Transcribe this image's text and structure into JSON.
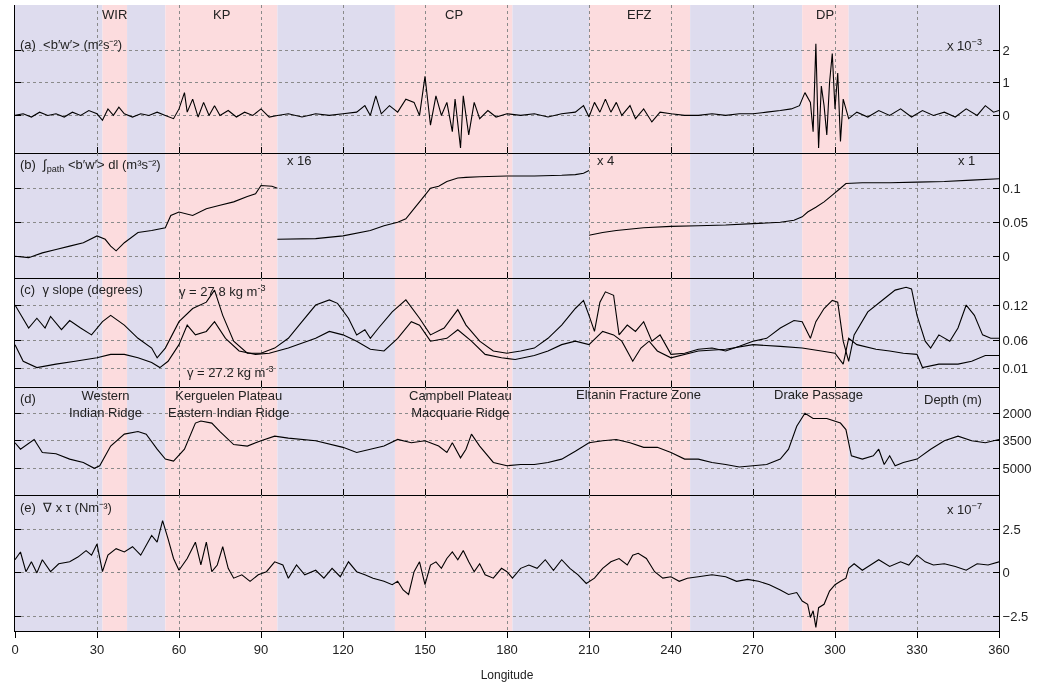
{
  "chart_data": [
    {
      "type": "line",
      "title": "(a)  <b′w′> (m²s⁻²)",
      "xlim": [
        0,
        360
      ],
      "xticks": [
        0,
        30,
        60,
        90,
        120,
        150,
        180,
        210,
        240,
        270,
        300,
        330,
        360
      ],
      "ylim": [
        -1.15,
        3.39
      ],
      "yticks": [
        0,
        1,
        2
      ],
      "grid": true,
      "tick_labels": "y",
      "annotations": [
        "x 10$^{−3}$"
      ],
      "bands": [
        {
          "axis": "x",
          "from": 0,
          "to": 32,
          "color": "#dedcee"
        },
        {
          "axis": "x",
          "from": 32,
          "to": 41,
          "color": "#fcdcde",
          "label": "WIR"
        },
        {
          "axis": "x",
          "from": 41,
          "to": 55,
          "color": "#dedcee"
        },
        {
          "axis": "x",
          "from": 55,
          "to": 96,
          "color": "#fcdcde",
          "label": "KP"
        },
        {
          "axis": "x",
          "from": 96,
          "to": 139,
          "color": "#dedcee"
        },
        {
          "axis": "x",
          "from": 139,
          "to": 182,
          "color": "#fcdcde",
          "label": "CP"
        },
        {
          "axis": "x",
          "from": 182,
          "to": 210,
          "color": "#dedcee"
        },
        {
          "axis": "x",
          "from": 210,
          "to": 247,
          "color": "#fcdcde",
          "label": "EFZ"
        },
        {
          "axis": "x",
          "from": 247,
          "to": 288,
          "color": "#dedcee"
        },
        {
          "axis": "x",
          "from": 288,
          "to": 305,
          "color": "#fcdcde",
          "label": "DP"
        },
        {
          "axis": "x",
          "from": 305,
          "to": 360,
          "color": "#dedcee"
        }
      ],
      "series": [
        {
          "color": "#000000",
          "x": [
            0,
            3,
            6,
            9,
            12,
            15,
            18,
            21,
            24,
            27,
            30,
            32,
            34,
            36,
            38,
            40,
            43,
            46,
            49,
            52,
            55,
            58,
            60,
            62,
            63,
            65,
            67,
            69,
            71,
            73,
            75,
            78,
            81,
            84,
            87,
            90,
            93,
            96,
            100,
            105,
            110,
            115,
            120,
            125,
            128,
            130,
            132,
            134,
            137,
            140,
            143,
            146,
            148,
            150,
            152,
            154,
            156,
            158,
            160,
            161,
            163,
            164,
            166,
            168,
            170,
            173,
            176,
            180,
            185,
            190,
            195,
            200,
            205,
            208,
            210,
            212,
            214,
            216,
            218,
            220,
            222,
            225,
            227,
            230,
            233,
            236,
            240,
            245,
            250,
            255,
            260,
            265,
            270,
            275,
            280,
            284,
            287,
            289,
            291,
            292,
            293,
            294,
            295,
            296,
            297,
            298,
            299,
            300,
            301,
            302,
            303,
            305,
            308,
            312,
            316,
            320,
            324,
            328,
            332,
            336,
            340,
            344,
            348,
            352,
            355,
            358,
            360
          ],
          "values": [
            0,
            0.05,
            -0.05,
            0.1,
            0,
            0.05,
            -0.05,
            0.1,
            0,
            0.15,
            0.05,
            -0.15,
            0.2,
            0,
            0.25,
            0.05,
            -0.05,
            0.05,
            0,
            0.1,
            0,
            -0.1,
            0.2,
            0.7,
            0.1,
            0.5,
            -0.05,
            0.4,
            0,
            0.3,
            0,
            0.15,
            -0.05,
            0.1,
            0,
            0.2,
            -0.05,
            0,
            0.05,
            -0.05,
            0.05,
            0,
            0.05,
            0.1,
            0.3,
            0,
            0.6,
            0.05,
            0.3,
            0.1,
            0.5,
            0.4,
            0,
            1.2,
            -0.3,
            0.6,
            0,
            0.4,
            -0.5,
            0.5,
            -1.0,
            0.6,
            -0.6,
            0.4,
            -0.1,
            0.15,
            -0.05,
            0.05,
            0,
            0.05,
            -0.05,
            0.05,
            0.1,
            0.3,
            -0.05,
            0.4,
            0.1,
            0.5,
            0.1,
            0.4,
            0,
            0.3,
            -0.1,
            0.2,
            -0.2,
            0.1,
            0.05,
            0,
            0,
            0.05,
            0,
            0.05,
            0.05,
            0.1,
            0.15,
            0.2,
            0.3,
            0.7,
            0.4,
            -0.5,
            2.2,
            -1.0,
            0.9,
            0.3,
            -0.6,
            1.0,
            1.9,
            0.2,
            1.3,
            -0.8,
            0.5,
            -0.1,
            0.1,
            -0.05,
            0.15,
            0,
            0.2,
            -0.05,
            0.15,
            0,
            0.1,
            -0.05,
            0.2,
            0,
            0.3,
            0.1,
            0.15
          ]
        }
      ]
    },
    {
      "type": "line",
      "title": "(b)  ∫$_{path}$ <b′w′> dl (m³s⁻²)",
      "xlim": [
        0,
        360
      ],
      "xticks": [
        0,
        30,
        60,
        90,
        120,
        150,
        180,
        210,
        240,
        270,
        300,
        330,
        360
      ],
      "ylim": [
        -0.032,
        0.152
      ],
      "yticks": [
        0,
        0.05,
        0.1
      ],
      "grid": true,
      "tick_labels": "y",
      "annotations": [
        "x 16",
        "x 4",
        "x 1"
      ],
      "bands": [
        {
          "axis": "x",
          "from": 0,
          "to": 32,
          "color": "#dedcee"
        },
        {
          "axis": "x",
          "from": 32,
          "to": 41,
          "color": "#fcdcde"
        },
        {
          "axis": "x",
          "from": 41,
          "to": 55,
          "color": "#dedcee"
        },
        {
          "axis": "x",
          "from": 55,
          "to": 96,
          "color": "#fcdcde"
        },
        {
          "axis": "x",
          "from": 96,
          "to": 139,
          "color": "#dedcee"
        },
        {
          "axis": "x",
          "from": 139,
          "to": 182,
          "color": "#fcdcde"
        },
        {
          "axis": "x",
          "from": 182,
          "to": 210,
          "color": "#dedcee"
        },
        {
          "axis": "x",
          "from": 210,
          "to": 247,
          "color": "#fcdcde"
        },
        {
          "axis": "x",
          "from": 247,
          "to": 288,
          "color": "#dedcee"
        },
        {
          "axis": "x",
          "from": 288,
          "to": 305,
          "color": "#fcdcde"
        },
        {
          "axis": "x",
          "from": 305,
          "to": 360,
          "color": "#dedcee"
        }
      ],
      "series": [
        {
          "color": "#000000",
          "x": [
            0,
            5,
            10,
            15,
            20,
            25,
            30,
            33,
            35,
            37,
            40,
            45,
            50,
            55,
            57,
            60,
            65,
            70,
            75,
            80,
            85,
            88,
            90,
            94,
            96
          ],
          "values": [
            0,
            -0.002,
            0.005,
            0.01,
            0.015,
            0.02,
            0.03,
            0.025,
            0.015,
            0.008,
            0.02,
            0.035,
            0.038,
            0.042,
            0.06,
            0.065,
            0.06,
            0.07,
            0.075,
            0.08,
            0.088,
            0.092,
            0.104,
            0.103,
            0.1
          ]
        },
        {
          "color": "#000000",
          "x": [
            96,
            110,
            120,
            130,
            135,
            140,
            143,
            146,
            150,
            152,
            155,
            158,
            162,
            165,
            170,
            180,
            190,
            200,
            205,
            208,
            210
          ],
          "values": [
            0.025,
            0.026,
            0.03,
            0.038,
            0.045,
            0.05,
            0.055,
            0.07,
            0.09,
            0.1,
            0.103,
            0.11,
            0.115,
            0.116,
            0.117,
            0.118,
            0.118,
            0.119,
            0.12,
            0.122,
            0.126
          ]
        },
        {
          "color": "#000000",
          "x": [
            210,
            215,
            220,
            230,
            240,
            250,
            260,
            270,
            280,
            285,
            288,
            290,
            293,
            296,
            299,
            302,
            304,
            310,
            320,
            330,
            340,
            350,
            360
          ],
          "values": [
            0.031,
            0.035,
            0.038,
            0.042,
            0.044,
            0.045,
            0.046,
            0.048,
            0.05,
            0.053,
            0.058,
            0.065,
            0.072,
            0.08,
            0.09,
            0.1,
            0.107,
            0.108,
            0.108,
            0.109,
            0.11,
            0.112,
            0.114
          ]
        }
      ]
    },
    {
      "type": "line",
      "title": "(c)  γ slope (degrees)",
      "xlim": [
        0,
        360
      ],
      "xticks": [
        0,
        30,
        60,
        90,
        120,
        150,
        180,
        210,
        240,
        270,
        300,
        330,
        360
      ],
      "ylim": [
        -0.021,
        0.168
      ],
      "yticks": [
        0.01,
        0.06,
        0.12
      ],
      "grid": true,
      "tick_labels": "y",
      "annotations": [
        "γ = 27.8 kg m$^{-3}$",
        "γ = 27.2 kg m$^{-3}$"
      ],
      "bands": [
        {
          "axis": "x",
          "from": 0,
          "to": 32,
          "color": "#dedcee"
        },
        {
          "axis": "x",
          "from": 32,
          "to": 41,
          "color": "#fcdcde"
        },
        {
          "axis": "x",
          "from": 41,
          "to": 55,
          "color": "#dedcee"
        },
        {
          "axis": "x",
          "from": 55,
          "to": 96,
          "color": "#fcdcde"
        },
        {
          "axis": "x",
          "from": 96,
          "to": 139,
          "color": "#dedcee"
        },
        {
          "axis": "x",
          "from": 139,
          "to": 182,
          "color": "#fcdcde"
        },
        {
          "axis": "x",
          "from": 182,
          "to": 210,
          "color": "#dedcee"
        },
        {
          "axis": "x",
          "from": 210,
          "to": 247,
          "color": "#fcdcde"
        },
        {
          "axis": "x",
          "from": 247,
          "to": 288,
          "color": "#dedcee"
        },
        {
          "axis": "x",
          "from": 288,
          "to": 305,
          "color": "#fcdcde"
        },
        {
          "axis": "x",
          "from": 305,
          "to": 360,
          "color": "#dedcee"
        }
      ],
      "series": [
        {
          "color": "#000000",
          "x": [
            0,
            5,
            8,
            11,
            13,
            17,
            20,
            24,
            28,
            32,
            35,
            40,
            45,
            50,
            52,
            55,
            60,
            65,
            70,
            73,
            76,
            80,
            85,
            90,
            95,
            100,
            105,
            110,
            115,
            118,
            122,
            125,
            128,
            130,
            133,
            138,
            143,
            148,
            152,
            157,
            162,
            165,
            170,
            175,
            180,
            185,
            190,
            195,
            200,
            205,
            208,
            210,
            212,
            214,
            216,
            219,
            221,
            224,
            227,
            230,
            233,
            236,
            240,
            245,
            250,
            255,
            260,
            265,
            270,
            275,
            280,
            285,
            288,
            291,
            293,
            296,
            299,
            301,
            303,
            305,
            307,
            312,
            318,
            322,
            326,
            328,
            330,
            333,
            335,
            338,
            342,
            345,
            348,
            351,
            354,
            357,
            360
          ],
          "values": [
            0.121,
            0.081,
            0.098,
            0.081,
            0.101,
            0.078,
            0.094,
            0.081,
            0.069,
            0.092,
            0.103,
            0.086,
            0.063,
            0.046,
            0.029,
            0.046,
            0.092,
            0.115,
            0.126,
            0.147,
            0.103,
            0.058,
            0.037,
            0.037,
            0.046,
            0.063,
            0.092,
            0.121,
            0.13,
            0.124,
            0.098,
            0.069,
            0.078,
            0.063,
            0.081,
            0.109,
            0.13,
            0.098,
            0.069,
            0.081,
            0.113,
            0.086,
            0.058,
            0.041,
            0.037,
            0.041,
            0.046,
            0.063,
            0.086,
            0.115,
            0.129,
            0.103,
            0.075,
            0.126,
            0.144,
            0.138,
            0.069,
            0.086,
            0.075,
            0.092,
            0.058,
            0.069,
            0.035,
            0.037,
            0.044,
            0.046,
            0.041,
            0.049,
            0.058,
            0.063,
            0.081,
            0.094,
            0.092,
            0.063,
            0.092,
            0.115,
            0.129,
            0.126,
            0.058,
            0.023,
            0.069,
            0.109,
            0.132,
            0.147,
            0.152,
            0.149,
            0.103,
            0.058,
            0.046,
            0.069,
            0.058,
            0.081,
            0.121,
            0.103,
            0.069,
            0.063,
            0.063
          ]
        },
        {
          "color": "#000000",
          "x": [
            0,
            3,
            8,
            15,
            22,
            30,
            35,
            40,
            45,
            50,
            53,
            56,
            60,
            63,
            66,
            70,
            73,
            77,
            82,
            88,
            93,
            100,
            110,
            115,
            120,
            125,
            130,
            135,
            140,
            145,
            148,
            152,
            158,
            162,
            167,
            172,
            178,
            183,
            190,
            195,
            200,
            205,
            210,
            215,
            219,
            222,
            226,
            229,
            232,
            235,
            240,
            250,
            260,
            270,
            280,
            288,
            295,
            300,
            303,
            305,
            308,
            315,
            320,
            325,
            330,
            332,
            338,
            345,
            350,
            355,
            360
          ],
          "values": [
            0.052,
            0.023,
            0.012,
            0.018,
            0.023,
            0.029,
            0.035,
            0.035,
            0.029,
            0.021,
            0.012,
            0.023,
            0.052,
            0.086,
            0.069,
            0.075,
            0.092,
            0.063,
            0.041,
            0.035,
            0.037,
            0.046,
            0.063,
            0.075,
            0.069,
            0.058,
            0.044,
            0.041,
            0.063,
            0.092,
            0.086,
            0.058,
            0.063,
            0.078,
            0.058,
            0.035,
            0.029,
            0.026,
            0.033,
            0.041,
            0.052,
            0.058,
            0.052,
            0.075,
            0.069,
            0.058,
            0.023,
            0.046,
            0.058,
            0.041,
            0.029,
            0.041,
            0.044,
            0.052,
            0.049,
            0.046,
            0.041,
            0.037,
            0.018,
            0.063,
            0.052,
            0.044,
            0.041,
            0.037,
            0.035,
            0.012,
            0.018,
            0.018,
            0.023,
            0.033,
            0.033
          ]
        }
      ]
    },
    {
      "type": "line",
      "title": "(d)",
      "xlim": [
        0,
        360
      ],
      "xticks": [
        0,
        30,
        60,
        90,
        120,
        150,
        180,
        210,
        240,
        270,
        300,
        330,
        360
      ],
      "ylim": [
        6450,
        550
      ],
      "yticks": [
        5000,
        3500,
        2000
      ],
      "grid": true,
      "tick_labels": "y",
      "annotations": [
        "Depth (m)",
        "Western\nIndian Ridge",
        "Kerguelen Plateau\nEastern Indian Ridge",
        "Campbell Plateau\nMacquarie Ridge",
        "Eltanin Fracture Zone",
        "Drake Passage"
      ],
      "bands": [
        {
          "axis": "x",
          "from": 0,
          "to": 32,
          "color": "#dedcee"
        },
        {
          "axis": "x",
          "from": 32,
          "to": 41,
          "color": "#fcdcde"
        },
        {
          "axis": "x",
          "from": 41,
          "to": 55,
          "color": "#dedcee"
        },
        {
          "axis": "x",
          "from": 55,
          "to": 96,
          "color": "#fcdcde"
        },
        {
          "axis": "x",
          "from": 96,
          "to": 139,
          "color": "#dedcee"
        },
        {
          "axis": "x",
          "from": 139,
          "to": 182,
          "color": "#fcdcde"
        },
        {
          "axis": "x",
          "from": 182,
          "to": 210,
          "color": "#dedcee"
        },
        {
          "axis": "x",
          "from": 210,
          "to": 247,
          "color": "#fcdcde"
        },
        {
          "axis": "x",
          "from": 247,
          "to": 288,
          "color": "#dedcee"
        },
        {
          "axis": "x",
          "from": 288,
          "to": 305,
          "color": "#fcdcde"
        },
        {
          "axis": "x",
          "from": 305,
          "to": 360,
          "color": "#dedcee"
        }
      ],
      "series": [
        {
          "color": "#000000",
          "x": [
            0,
            2,
            7,
            10,
            15,
            20,
            25,
            29,
            31,
            35,
            40,
            45,
            48,
            52,
            55,
            58,
            62,
            66,
            68,
            72,
            75,
            80,
            85,
            90,
            95,
            100,
            110,
            120,
            125,
            130,
            135,
            140,
            145,
            150,
            155,
            158,
            160,
            163,
            165,
            167,
            170,
            175,
            180,
            185,
            190,
            195,
            200,
            205,
            210,
            215,
            220,
            225,
            230,
            235,
            240,
            245,
            250,
            255,
            260,
            265,
            270,
            275,
            280,
            283,
            286,
            289,
            292,
            297,
            302,
            304,
            306,
            310,
            314,
            316,
            318,
            320,
            322,
            325,
            330,
            335,
            340,
            345,
            350,
            355,
            360
          ],
          "values": [
            3610,
            3960,
            3430,
            4140,
            4210,
            4500,
            4680,
            5000,
            4860,
            3790,
            3140,
            3000,
            3140,
            3960,
            4500,
            4610,
            3960,
            2540,
            2430,
            2540,
            3000,
            3710,
            3790,
            3500,
            3250,
            3360,
            3500,
            3860,
            4140,
            3960,
            3790,
            3430,
            3610,
            3500,
            3790,
            4140,
            3610,
            4430,
            3960,
            3140,
            3790,
            4680,
            4860,
            4790,
            4790,
            4680,
            4500,
            4070,
            3610,
            3500,
            3430,
            3610,
            3860,
            3860,
            4140,
            4500,
            4500,
            4680,
            4790,
            4930,
            4860,
            4790,
            4500,
            3960,
            2710,
            2000,
            2290,
            2290,
            2540,
            2890,
            4320,
            4500,
            4320,
            3960,
            4790,
            4320,
            4860,
            4680,
            4500,
            3960,
            3500,
            3250,
            3500,
            3610,
            3430
          ]
        }
      ]
    },
    {
      "type": "line",
      "title": "(e)  ∇ x τ (Nm⁻³)",
      "xlabel": "Longitude",
      "xlim": [
        0,
        360
      ],
      "xticks": [
        0,
        30,
        60,
        90,
        120,
        150,
        180,
        210,
        240,
        270,
        300,
        330,
        360
      ],
      "ylim": [
        -3.31,
        4.44
      ],
      "yticks": [
        -2.5,
        0,
        2.5
      ],
      "grid": true,
      "annotations": [
        "x 10$^{−7}$"
      ],
      "bands": [
        {
          "axis": "x",
          "from": 0,
          "to": 32,
          "color": "#dedcee"
        },
        {
          "axis": "x",
          "from": 32,
          "to": 41,
          "color": "#fcdcde"
        },
        {
          "axis": "x",
          "from": 41,
          "to": 55,
          "color": "#dedcee"
        },
        {
          "axis": "x",
          "from": 55,
          "to": 96,
          "color": "#fcdcde"
        },
        {
          "axis": "x",
          "from": 96,
          "to": 139,
          "color": "#dedcee"
        },
        {
          "axis": "x",
          "from": 139,
          "to": 182,
          "color": "#fcdcde"
        },
        {
          "axis": "x",
          "from": 182,
          "to": 210,
          "color": "#dedcee"
        },
        {
          "axis": "x",
          "from": 210,
          "to": 247,
          "color": "#fcdcde"
        },
        {
          "axis": "x",
          "from": 247,
          "to": 288,
          "color": "#dedcee"
        },
        {
          "axis": "x",
          "from": 288,
          "to": 305,
          "color": "#fcdcde"
        },
        {
          "axis": "x",
          "from": 305,
          "to": 360,
          "color": "#dedcee"
        }
      ],
      "series": [
        {
          "color": "#000000",
          "x": [
            0,
            2,
            4,
            6,
            8,
            10,
            13,
            16,
            20,
            23,
            26,
            28,
            30,
            32,
            34,
            37,
            40,
            43,
            46,
            50,
            52,
            54,
            56,
            58,
            60,
            63,
            66,
            68,
            70,
            72,
            74,
            76,
            78,
            80,
            83,
            86,
            89,
            92,
            95,
            98,
            100,
            103,
            106,
            110,
            113,
            116,
            119,
            122,
            125,
            128,
            131,
            135,
            138,
            140,
            142,
            144,
            146,
            148,
            150,
            152,
            154,
            156,
            158,
            160,
            162,
            164,
            166,
            168,
            170,
            172,
            175,
            178,
            180,
            182,
            185,
            188,
            191,
            194,
            197,
            200,
            203,
            206,
            209,
            212,
            215,
            218,
            221,
            224,
            226,
            228,
            231,
            234,
            237,
            240,
            243,
            246,
            250,
            255,
            260,
            264,
            268,
            272,
            276,
            280,
            283,
            286,
            288,
            290,
            291,
            292,
            293,
            294,
            296,
            298,
            300,
            302,
            304,
            305,
            307,
            310,
            313,
            316,
            320,
            324,
            327,
            330,
            333,
            336,
            340,
            344,
            348,
            352,
            356,
            360
          ],
          "values": [
            0.75,
            1.19,
            0.07,
            0.63,
            0,
            0.75,
            0.07,
            0.52,
            0.63,
            0.9,
            1.27,
            1.01,
            1.64,
            0.07,
            1.01,
            1.38,
            1.19,
            1.49,
            1.01,
            2.13,
            1.75,
            2.98,
            1.94,
            0.82,
            0.15,
            0.82,
            1.75,
            0.45,
            1.75,
            0.07,
            0.45,
            1.49,
            0.26,
            -0.3,
            -0.11,
            -0.48,
            -0.11,
            0.07,
            0.63,
            0.45,
            -0.3,
            0.45,
            -0.11,
            0.15,
            -0.3,
            0.26,
            -0.22,
            0.63,
            0.07,
            -0.11,
            -0.3,
            -0.48,
            -0.67,
            -0.48,
            -0.97,
            -1.23,
            0.07,
            0.63,
            -0.67,
            0.45,
            0.63,
            0.26,
            0.82,
            1.19,
            0.75,
            1.27,
            0.63,
            0.07,
            0.52,
            -0.11,
            -0.3,
            0.26,
            0.07,
            -0.3,
            0.26,
            0.45,
            0.26,
            0.75,
            0.15,
            0.75,
            0.26,
            -0.11,
            -0.6,
            -0.3,
            0.26,
            0.63,
            0.82,
            0.45,
            1.01,
            1.12,
            0.82,
            0.07,
            -0.3,
            -0.22,
            -0.48,
            -0.3,
            -0.22,
            -0.11,
            -0.22,
            -0.48,
            -0.37,
            -0.48,
            -0.67,
            -0.97,
            -1.23,
            -1.12,
            -1.6,
            -1.79,
            -2.54,
            -2.16,
            -3.1,
            -1.98,
            -1.79,
            -1.04,
            -0.67,
            -0.48,
            -0.3,
            0.26,
            0.52,
            0.15,
            0.45,
            0.75,
            0.37,
            0.63,
            0.45,
            1.01,
            0.63,
            0.45,
            0.52,
            0.37,
            0.15,
            0.52,
            0.45,
            0.63
          ]
        }
      ]
    }
  ]
}
